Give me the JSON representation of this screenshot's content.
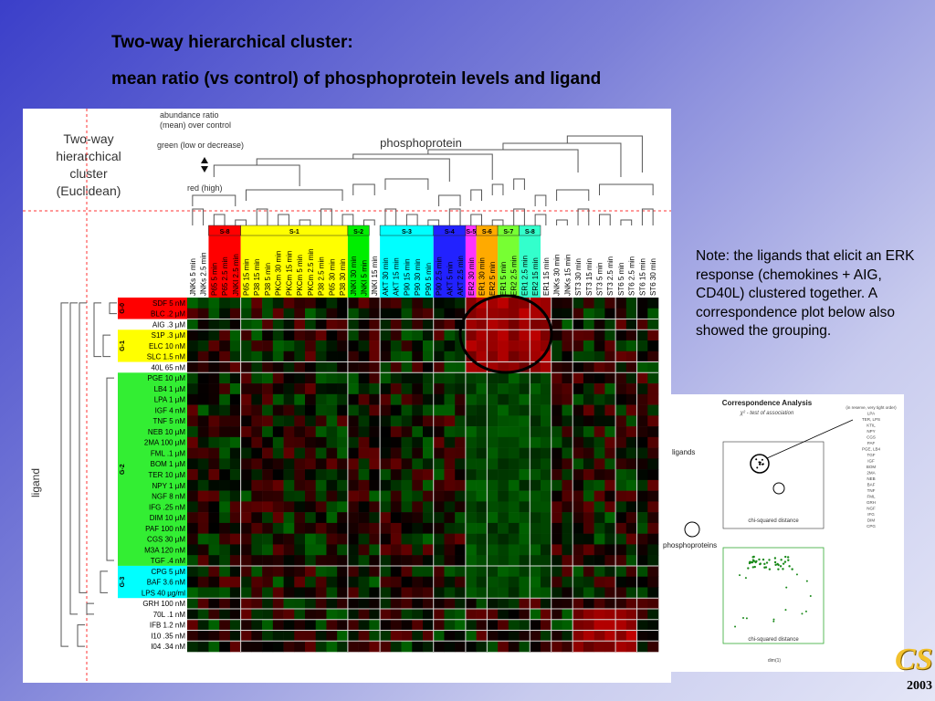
{
  "slide": {
    "title_line1": "Two-way hierarchical cluster:",
    "title_line2": "mean ratio (vs control) of phosphoprotein levels and ligand",
    "note": "Note: the ligands that elicit an ERK response (chemokines + AIG, CD40L) clustered together. A correspondence plot below also showed the grouping.",
    "logo_text": "CS",
    "year": "2003"
  },
  "figure": {
    "heading_lines": [
      "Two-way",
      "hierarchical",
      "cluster",
      "(Euclidean)"
    ],
    "legend": {
      "ratio_line1": "abundance ratio",
      "ratio_line2": "(mean)  over control",
      "green_label": "green (low or decrease)",
      "red_label": "red (high)"
    },
    "column_axis_label": "phosphoprotein",
    "row_axis_label": "ligand",
    "column_groups": [
      {
        "label": "S-8",
        "color": "#ff0000"
      },
      {
        "label": "S-1",
        "color": "#ffff00"
      },
      {
        "label": "S-2",
        "color": "#00ee00"
      },
      {
        "label": "S-3",
        "color": "#00ffff"
      },
      {
        "label": "S-4",
        "color": "#2222ff"
      },
      {
        "label": "S-5",
        "color": "#ff33ff"
      },
      {
        "label": "S-6",
        "color": "#ffaa00"
      },
      {
        "label": "S-7",
        "color": "#77ff33"
      },
      {
        "label": "S-8",
        "color": "#33ffcc"
      }
    ],
    "columns": [
      "JNKs 5 min",
      "JNKs 2.5 min",
      "P65 5 min",
      "P65 2.5 min",
      "JNKI 2.5 min",
      "P65 15 min",
      "P38 15 min",
      "P38 5 min",
      "PKCm 30 min",
      "PKCm 15 min",
      "PKCm 5 min",
      "PKCm 2.5 min",
      "P38 2.5 min",
      "P65 30 min",
      "P38 30 min",
      "JNKI 30 min",
      "JNKI 5 min",
      "JNKI 15 min",
      "AKT 30 min",
      "AKT 15 min",
      "P90 15 min",
      "P90 30 min",
      "P90 5 min",
      "P90 2.5 min",
      "AKT 5 min",
      "AKT 2.5 min",
      "ER2 30 min",
      "ER1 30 min",
      "ER2 5 min",
      "ER1 5 min",
      "ER2 2.5 min",
      "ER1 2.5 min",
      "ER2 15 min",
      "ER1 15 min",
      "JNKs 30 min",
      "JNKs 15 min",
      "ST3 30 min",
      "ST3 15 min",
      "ST3 5 min",
      "ST3 2.5 min",
      "ST6 5 min",
      "ST6 2.5 min",
      "ST6 15 min",
      "ST6 30 min"
    ],
    "row_groups": [
      {
        "label": "G-0",
        "color": "#ff0000"
      },
      {
        "label": "G-1",
        "color": "#ffff00"
      },
      {
        "label": "G-2",
        "color": "#33ee33"
      },
      {
        "label": "G-3",
        "color": "#00ffff"
      }
    ],
    "rows": [
      {
        "label": "SDF 5 nM",
        "group": 0
      },
      {
        "label": "BLC .2 µM",
        "group": 0
      },
      {
        "label": "AIG .3 µM",
        "group": -1
      },
      {
        "label": "S1P .3 µM",
        "group": 1
      },
      {
        "label": "ELC 10 nM",
        "group": 1
      },
      {
        "label": "SLC 1.5 nM",
        "group": 1
      },
      {
        "label": "40L 65 nM",
        "group": -1
      },
      {
        "label": "PGE 10 µM",
        "group": 2
      },
      {
        "label": "LB4 1 µM",
        "group": 2
      },
      {
        "label": "LPA 1 µM",
        "group": 2
      },
      {
        "label": "IGF 4 nM",
        "group": 2
      },
      {
        "label": "TNF 5 nM",
        "group": 2
      },
      {
        "label": "NEB 10 µM",
        "group": 2
      },
      {
        "label": "2MA 100 µM",
        "group": 2
      },
      {
        "label": "FML .1 µM",
        "group": 2
      },
      {
        "label": "BOM 1 µM",
        "group": 2
      },
      {
        "label": "TER 10 µM",
        "group": 2
      },
      {
        "label": "NPY 1 µM",
        "group": 2
      },
      {
        "label": "NGF 8 nM",
        "group": 2
      },
      {
        "label": "IFG .25 nM",
        "group": 2
      },
      {
        "label": "DIM 10 µM",
        "group": 2
      },
      {
        "label": "PAF 100 nM",
        "group": 2
      },
      {
        "label": "CGS 30 µM",
        "group": 2
      },
      {
        "label": "M3A 120 nM",
        "group": 2
      },
      {
        "label": "TGF .4 nM",
        "group": 2
      },
      {
        "label": "CPG 5 µM",
        "group": 3
      },
      {
        "label": "BAF 3.6 nM",
        "group": 3
      },
      {
        "label": "LPS 40 µg/ml",
        "group": 3
      },
      {
        "label": "GRH 100 nM",
        "group": -1
      },
      {
        "label": "70L .1 nM",
        "group": -1
      },
      {
        "label": "IFB 1.2 nM",
        "group": -1
      },
      {
        "label": "I10 .35 nM",
        "group": -1
      },
      {
        "label": "I04 .34 nM",
        "group": -1
      }
    ],
    "colors": {
      "high": "#ff0000",
      "low": "#00ff00",
      "neutral": "#000000",
      "guide": "#ff3333"
    }
  },
  "correspondence": {
    "title": "Correspondence Analysis",
    "subtitle": "χ² - test of association",
    "ligands_label": "ligands",
    "phosphoproteins_label": "phosphoproteins",
    "chi_label_top": "chi-squared distance",
    "chi_label_bottom": "chi-squared distance",
    "legend_items": [
      "(in reserve, very tight order)",
      "LPA",
      "TER, LPS",
      "KTIL",
      "NPY",
      "CGS",
      "PAF",
      "PGE, LB4",
      "TGF",
      "IGF",
      "BOM",
      "2MA",
      "NEB",
      "BAF",
      "TNF",
      "FML",
      "GRH",
      "NGF",
      "IFG",
      "DIM",
      "CPG"
    ],
    "axis_label": "dim(1)"
  }
}
